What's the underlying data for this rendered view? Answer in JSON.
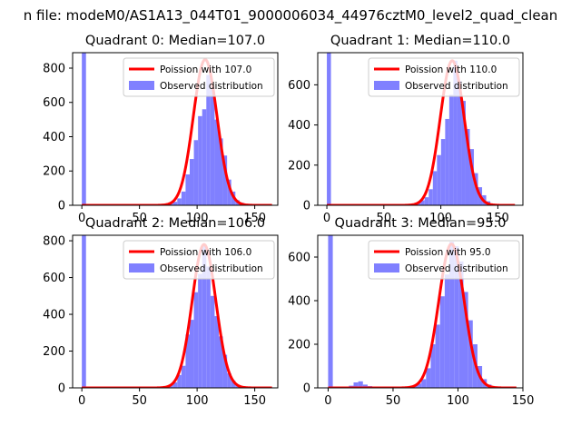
{
  "suptitle": "n file: modeM0/AS1A13_044T01_9000006034_44976cztM0_level2_quad_clean",
  "colors": {
    "poisson": "#ff0000",
    "observed": "#8080ff"
  },
  "chart_data": [
    {
      "type": "bar",
      "title": "Quadrant 0: Median=107.0",
      "xlim": [
        -8,
        170
      ],
      "ylim": [
        0,
        890
      ],
      "xticks": [
        0,
        50,
        100,
        150
      ],
      "xtick_labels": [
        "0",
        "50",
        "100",
        "150"
      ],
      "yticks": [
        0,
        200,
        400,
        600,
        800
      ],
      "ytick_labels": [
        "0",
        "200",
        "400",
        "600",
        "800"
      ],
      "legend": [
        "Poission with 107.0",
        "Observed distribution"
      ],
      "legend_loc": "upper right",
      "bin_width": 3.6,
      "observed_bins": [
        {
          "x": 0,
          "count": 890
        },
        {
          "x": 72,
          "count": 5
        },
        {
          "x": 75.6,
          "count": 10
        },
        {
          "x": 79.2,
          "count": 20
        },
        {
          "x": 82.8,
          "count": 40
        },
        {
          "x": 86.4,
          "count": 80
        },
        {
          "x": 90,
          "count": 180
        },
        {
          "x": 93.6,
          "count": 270
        },
        {
          "x": 97.2,
          "count": 380
        },
        {
          "x": 100.8,
          "count": 520
        },
        {
          "x": 104.4,
          "count": 560
        },
        {
          "x": 108,
          "count": 760
        },
        {
          "x": 111.6,
          "count": 680
        },
        {
          "x": 115.2,
          "count": 500
        },
        {
          "x": 118.8,
          "count": 390
        },
        {
          "x": 122.4,
          "count": 290
        },
        {
          "x": 126,
          "count": 150
        },
        {
          "x": 129.6,
          "count": 80
        },
        {
          "x": 133.2,
          "count": 30
        },
        {
          "x": 136.8,
          "count": 15
        },
        {
          "x": 140.4,
          "count": 5
        }
      ],
      "poisson": {
        "lambda": 107.0,
        "peak": 850,
        "x_range": [
          0,
          165
        ]
      }
    },
    {
      "type": "bar",
      "title": "Quadrant 1: Median=110.0",
      "xlim": [
        -8,
        172
      ],
      "ylim": [
        0,
        760
      ],
      "xticks": [
        0,
        50,
        100,
        150
      ],
      "xtick_labels": [
        "0",
        "50",
        "100",
        "150"
      ],
      "yticks": [
        0,
        200,
        400,
        600
      ],
      "ytick_labels": [
        "0",
        "200",
        "400",
        "600"
      ],
      "legend": [
        "Poission with 110.0",
        "Observed distribution"
      ],
      "legend_loc": "upper right",
      "bin_width": 3.6,
      "observed_bins": [
        {
          "x": 0,
          "count": 760
        },
        {
          "x": 75,
          "count": 5
        },
        {
          "x": 78.6,
          "count": 15
        },
        {
          "x": 82.2,
          "count": 25
        },
        {
          "x": 85.8,
          "count": 40
        },
        {
          "x": 89.4,
          "count": 80
        },
        {
          "x": 93,
          "count": 170
        },
        {
          "x": 96.6,
          "count": 250
        },
        {
          "x": 100.2,
          "count": 330
        },
        {
          "x": 103.8,
          "count": 430
        },
        {
          "x": 107.4,
          "count": 550
        },
        {
          "x": 111,
          "count": 720
        },
        {
          "x": 114.6,
          "count": 620
        },
        {
          "x": 118.2,
          "count": 520
        },
        {
          "x": 121.8,
          "count": 380
        },
        {
          "x": 125.4,
          "count": 280
        },
        {
          "x": 129,
          "count": 160
        },
        {
          "x": 132.6,
          "count": 90
        },
        {
          "x": 136.2,
          "count": 50
        },
        {
          "x": 139.8,
          "count": 20
        },
        {
          "x": 143.4,
          "count": 5
        }
      ],
      "poisson": {
        "lambda": 110.0,
        "peak": 720,
        "x_range": [
          0,
          165
        ]
      }
    },
    {
      "type": "bar",
      "title": "Quadrant 2: Median=106.0",
      "xlim": [
        -8,
        170
      ],
      "ylim": [
        0,
        830
      ],
      "xticks": [
        0,
        50,
        100,
        150
      ],
      "xtick_labels": [
        "0",
        "50",
        "100",
        "150"
      ],
      "yticks": [
        0,
        200,
        400,
        600,
        800
      ],
      "ytick_labels": [
        "0",
        "200",
        "400",
        "600",
        "800"
      ],
      "legend": [
        "Poission with 106.0",
        "Observed distribution"
      ],
      "legend_loc": "upper right",
      "bin_width": 3.6,
      "observed_bins": [
        {
          "x": 0,
          "count": 830
        },
        {
          "x": 72,
          "count": 5
        },
        {
          "x": 75.6,
          "count": 15
        },
        {
          "x": 79.2,
          "count": 30
        },
        {
          "x": 82.8,
          "count": 70
        },
        {
          "x": 86.4,
          "count": 120
        },
        {
          "x": 90,
          "count": 290
        },
        {
          "x": 93.6,
          "count": 370
        },
        {
          "x": 97.2,
          "count": 520
        },
        {
          "x": 100.8,
          "count": 620
        },
        {
          "x": 104.4,
          "count": 780
        },
        {
          "x": 108,
          "count": 660
        },
        {
          "x": 111.6,
          "count": 500
        },
        {
          "x": 115.2,
          "count": 390
        },
        {
          "x": 118.8,
          "count": 280
        },
        {
          "x": 122.4,
          "count": 180
        },
        {
          "x": 126,
          "count": 80
        },
        {
          "x": 129.6,
          "count": 40
        },
        {
          "x": 133.2,
          "count": 15
        },
        {
          "x": 136.8,
          "count": 5
        }
      ],
      "poisson": {
        "lambda": 106.0,
        "peak": 780,
        "x_range": [
          0,
          165
        ]
      }
    },
    {
      "type": "bar",
      "title": "Quadrant 3: Median=95.0",
      "xlim": [
        -8,
        150
      ],
      "ylim": [
        0,
        700
      ],
      "xticks": [
        0,
        50,
        100,
        150
      ],
      "xtick_labels": [
        "0",
        "50",
        "100",
        "150"
      ],
      "yticks": [
        0,
        200,
        400,
        600
      ],
      "ytick_labels": [
        "0",
        "200",
        "400",
        "600"
      ],
      "legend": [
        "Poission with 95.0",
        "Observed distribution"
      ],
      "legend_loc": "upper right",
      "bin_width": 3.6,
      "observed_bins": [
        {
          "x": 0,
          "count": 700
        },
        {
          "x": 16,
          "count": 10
        },
        {
          "x": 19.6,
          "count": 25
        },
        {
          "x": 23.2,
          "count": 30
        },
        {
          "x": 26.8,
          "count": 15
        },
        {
          "x": 30.4,
          "count": 8
        },
        {
          "x": 34,
          "count": 4
        },
        {
          "x": 61,
          "count": 5
        },
        {
          "x": 64.6,
          "count": 10
        },
        {
          "x": 68.2,
          "count": 20
        },
        {
          "x": 71.8,
          "count": 40
        },
        {
          "x": 75.4,
          "count": 90
        },
        {
          "x": 79,
          "count": 200
        },
        {
          "x": 82.6,
          "count": 290
        },
        {
          "x": 86.2,
          "count": 420
        },
        {
          "x": 89.8,
          "count": 520
        },
        {
          "x": 93.4,
          "count": 670
        },
        {
          "x": 97,
          "count": 650
        },
        {
          "x": 100.6,
          "count": 580
        },
        {
          "x": 104.2,
          "count": 440
        },
        {
          "x": 107.8,
          "count": 310
        },
        {
          "x": 111.4,
          "count": 200
        },
        {
          "x": 115,
          "count": 100
        },
        {
          "x": 118.6,
          "count": 40
        },
        {
          "x": 122.2,
          "count": 15
        },
        {
          "x": 125.8,
          "count": 5
        }
      ],
      "poisson": {
        "lambda": 95.0,
        "peak": 660,
        "x_range": [
          0,
          145
        ]
      }
    }
  ]
}
